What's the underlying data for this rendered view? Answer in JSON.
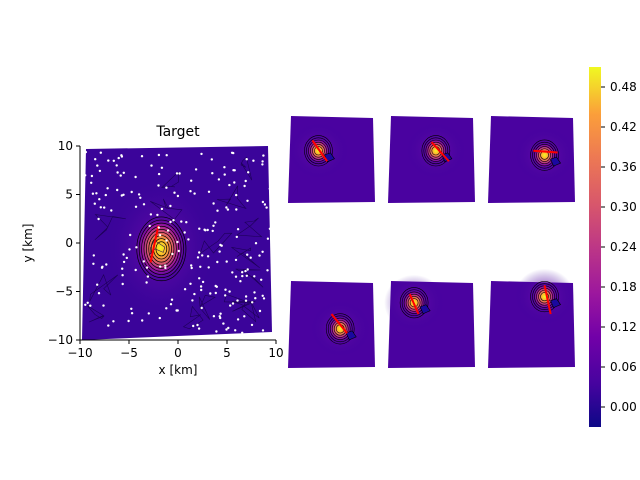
{
  "chart_data": {
    "type": "heatmap",
    "colormap": "plasma",
    "main_panel": {
      "title": "Target",
      "xlabel": "x [km]",
      "ylabel": "y [km]",
      "xlim": [
        -10,
        10
      ],
      "ylim": [
        -10,
        10
      ],
      "x_ticks": [
        "−10",
        "−5",
        "0",
        "5",
        "10"
      ],
      "y_ticks": [
        "−10",
        "−5",
        "0",
        "5",
        "10"
      ],
      "x_tick_values": [
        -10,
        -5,
        0,
        5,
        10
      ],
      "y_tick_values": [
        -10,
        -5,
        0,
        5,
        10
      ],
      "peak": {
        "x": -1.8,
        "y": -0.5
      },
      "slip_line": {
        "x1": -2.0,
        "y1": 1.8,
        "x2": -2.8,
        "y2": -2.0
      }
    },
    "small_panels": [
      {
        "peak": {
          "u": 0.35,
          "v": 0.4
        },
        "line": {
          "u1": 0.28,
          "v1": 0.28,
          "u2": 0.45,
          "v2": 0.52
        }
      },
      {
        "peak": {
          "u": 0.55,
          "v": 0.4
        },
        "line": {
          "u1": 0.5,
          "v1": 0.3,
          "u2": 0.7,
          "v2": 0.52
        }
      },
      {
        "peak": {
          "u": 0.65,
          "v": 0.45
        },
        "line": {
          "u1": 0.52,
          "v1": 0.4,
          "u2": 0.8,
          "v2": 0.42
        }
      },
      {
        "peak": {
          "u": 0.6,
          "v": 0.55
        },
        "line": {
          "u1": 0.5,
          "v1": 0.38,
          "u2": 0.68,
          "v2": 0.6
        }
      },
      {
        "peak": {
          "u": 0.3,
          "v": 0.25
        },
        "line": {
          "u1": 0.25,
          "v1": 0.15,
          "u2": 0.35,
          "v2": 0.38
        }
      },
      {
        "peak": {
          "u": 0.65,
          "v": 0.18
        },
        "line": {
          "u1": 0.65,
          "v1": 0.05,
          "u2": 0.72,
          "v2": 0.38
        }
      }
    ],
    "colorbar": {
      "min": -0.03,
      "max": 0.51,
      "tick_values": [
        0.0,
        0.06,
        0.12,
        0.18,
        0.24,
        0.3,
        0.36,
        0.42,
        0.48
      ],
      "tick_labels": [
        "0.00",
        "0.06",
        "0.12",
        "0.18",
        "0.24",
        "0.30",
        "0.36",
        "0.42",
        "0.48"
      ]
    },
    "colors": {
      "plasma_low": "#0d0887",
      "plasma_mid": "#cc4778",
      "plasma_high": "#f0f921",
      "slip_line": "#ff0000",
      "stations": "#ffffff"
    }
  }
}
